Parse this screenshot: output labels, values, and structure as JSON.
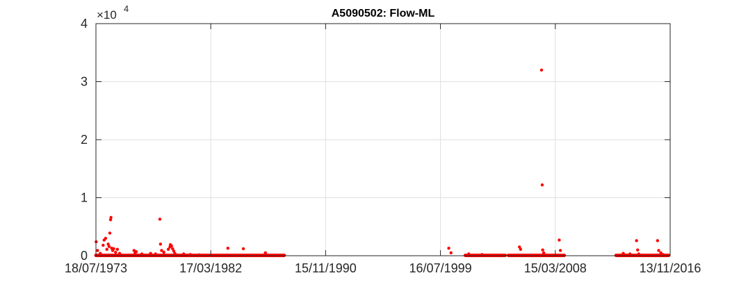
{
  "colors": {
    "marker": "#ff0000",
    "axis": "#262626",
    "grid": "#dfdfdf",
    "background": "#ffffff"
  },
  "chart_data": {
    "type": "scatter",
    "title": "A5090502: Flow-ML",
    "xlabel": "",
    "ylabel": "",
    "y_multiplier_label": {
      "base": "×10",
      "exponent": "4"
    },
    "x_axis_kind": "date",
    "xlim": [
      "1973-07-18",
      "2016-11-13"
    ],
    "ylim": [
      0,
      40000
    ],
    "grid": true,
    "x_ticks": [
      "1973-07-18",
      "1982-03-17",
      "1990-11-15",
      "1999-07-16",
      "2008-03-15",
      "2016-11-13"
    ],
    "x_tick_labels": [
      "18/07/1973",
      "17/03/1982",
      "15/11/1990",
      "16/07/1999",
      "15/03/2008",
      "13/11/2016"
    ],
    "y_ticks": [
      0,
      10000,
      20000,
      30000,
      40000
    ],
    "y_tick_labels": [
      "0",
      "1",
      "2",
      "3",
      "4"
    ],
    "series": [
      {
        "marker": "dot",
        "continuous_segments": [
          {
            "from": "1973-07-18",
            "to": "1987-10-01",
            "value": 0
          },
          {
            "from": "2001-06-01",
            "to": "2004-06-01",
            "value": 0
          },
          {
            "from": "2004-09-01",
            "to": "2008-11-15",
            "value": 0
          },
          {
            "from": "2012-10-15",
            "to": "2016-10-01",
            "value": 0
          }
        ],
        "points": [
          [
            "1973-07-25",
            2400
          ],
          [
            "1973-09-01",
            900
          ],
          [
            "1973-11-15",
            400
          ],
          [
            "1974-02-01",
            1800
          ],
          [
            "1974-03-01",
            2700
          ],
          [
            "1974-04-10",
            3000
          ],
          [
            "1974-05-15",
            1100
          ],
          [
            "1974-06-20",
            2000
          ],
          [
            "1974-07-15",
            1600
          ],
          [
            "1974-08-05",
            3900
          ],
          [
            "1974-08-25",
            6200
          ],
          [
            "1974-09-05",
            6600
          ],
          [
            "1974-09-25",
            1300
          ],
          [
            "1974-10-20",
            900
          ],
          [
            "1974-11-20",
            1200
          ],
          [
            "1975-01-10",
            600
          ],
          [
            "1975-03-01",
            1100
          ],
          [
            "1975-05-01",
            400
          ],
          [
            "1976-06-01",
            900
          ],
          [
            "1976-07-01",
            500
          ],
          [
            "1976-08-01",
            700
          ],
          [
            "1977-01-01",
            300
          ],
          [
            "1977-09-01",
            400
          ],
          [
            "1978-01-15",
            300
          ],
          [
            "1978-05-15",
            6300
          ],
          [
            "1978-06-01",
            2000
          ],
          [
            "1978-07-01",
            900
          ],
          [
            "1978-09-01",
            600
          ],
          [
            "1979-01-01",
            1100
          ],
          [
            "1979-02-15",
            1500
          ],
          [
            "1979-03-01",
            1900
          ],
          [
            "1979-04-01",
            1700
          ],
          [
            "1979-05-01",
            1200
          ],
          [
            "1979-06-01",
            800
          ],
          [
            "1979-07-01",
            400
          ],
          [
            "1980-03-01",
            300
          ],
          [
            "1980-09-01",
            200
          ],
          [
            "1981-05-01",
            150
          ],
          [
            "1983-07-01",
            1300
          ],
          [
            "1984-09-01",
            1200
          ],
          [
            "1986-05-01",
            500
          ],
          [
            "2000-03-01",
            1300
          ],
          [
            "2000-05-01",
            500
          ],
          [
            "2001-09-01",
            300
          ],
          [
            "2002-09-01",
            200
          ],
          [
            "2005-07-01",
            1500
          ],
          [
            "2005-08-01",
            1100
          ],
          [
            "2007-03-01",
            32000
          ],
          [
            "2007-03-20",
            12200
          ],
          [
            "2007-04-01",
            1000
          ],
          [
            "2007-05-01",
            500
          ],
          [
            "2008-07-01",
            2700
          ],
          [
            "2008-08-01",
            900
          ],
          [
            "2013-05-01",
            400
          ],
          [
            "2013-11-01",
            300
          ],
          [
            "2014-05-01",
            2600
          ],
          [
            "2014-06-01",
            1000
          ],
          [
            "2014-07-01",
            300
          ],
          [
            "2015-12-01",
            2600
          ],
          [
            "2016-01-01",
            900
          ],
          [
            "2016-03-01",
            500
          ],
          [
            "2016-05-01",
            200
          ]
        ]
      }
    ]
  }
}
